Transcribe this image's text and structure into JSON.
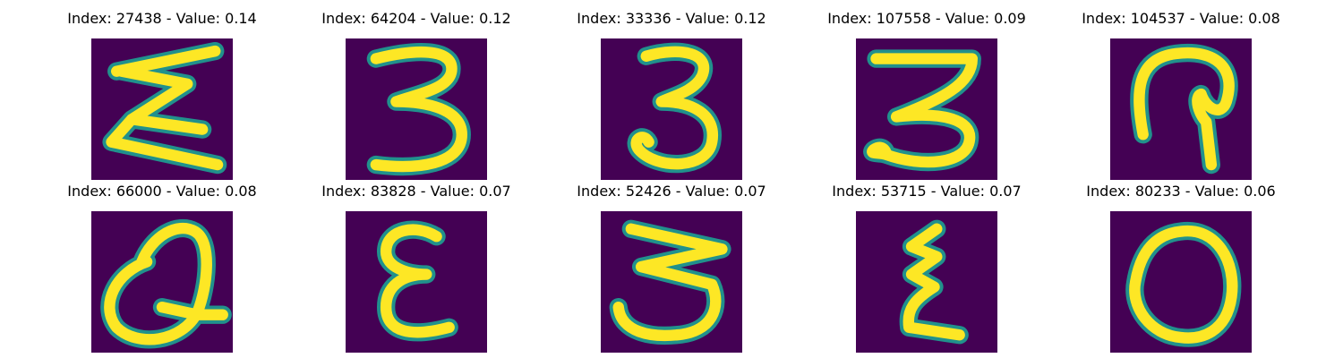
{
  "colors": {
    "background": "#440154",
    "stroke_core": "#fde725",
    "stroke_edge": "#21918c"
  },
  "panels": [
    {
      "title": "Index: 27438 - Value: 0.14",
      "glyph": "epsilon-wide"
    },
    {
      "title": "Index: 64204 - Value: 0.12",
      "glyph": "three"
    },
    {
      "title": "Index: 33336 - Value: 0.12",
      "glyph": "three-open"
    },
    {
      "title": "Index: 107558 - Value: 0.09",
      "glyph": "three-flat-top"
    },
    {
      "title": "Index: 104537 - Value: 0.08",
      "glyph": "loop-hook"
    },
    {
      "title": "Index: 66000 - Value: 0.08",
      "glyph": "q-loop"
    },
    {
      "title": "Index: 83828 - Value: 0.07",
      "glyph": "epsilon"
    },
    {
      "title": "Index: 52426 - Value: 0.07",
      "glyph": "three-wide"
    },
    {
      "title": "Index: 53715 - Value: 0.07",
      "glyph": "epsilon-narrow"
    },
    {
      "title": "Index: 80233 - Value: 0.06",
      "glyph": "zero"
    }
  ]
}
